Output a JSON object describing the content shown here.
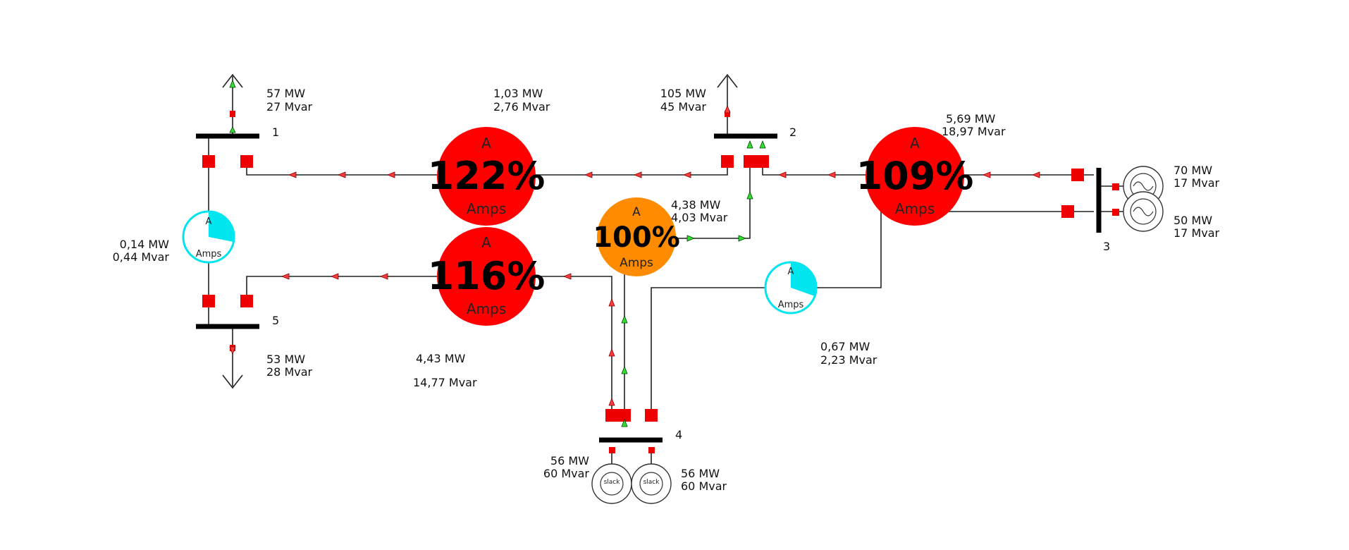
{
  "buses": [
    {
      "id": "bus-1",
      "label": "1"
    },
    {
      "id": "bus-2",
      "label": "2"
    },
    {
      "id": "bus-3",
      "label": "3"
    },
    {
      "id": "bus-4",
      "label": "4"
    },
    {
      "id": "bus-5",
      "label": "5"
    }
  ],
  "loads": {
    "bus1": {
      "mw": "57 MW",
      "mvar": "27 Mvar"
    },
    "bus2": {
      "mw": "105 MW",
      "mvar": "45 Mvar"
    },
    "bus5": {
      "mw": "53 MW",
      "mvar": "28 Mvar"
    }
  },
  "generators": {
    "bus3_top": {
      "mw": "70 MW",
      "mvar": "17 Mvar"
    },
    "bus3_bottom": {
      "mw": "50 MW",
      "mvar": "17 Mvar"
    },
    "bus4_left": {
      "mw": "56 MW",
      "mvar": "60 Mvar",
      "tag": "slack"
    },
    "bus4_right": {
      "mw": "56 MW",
      "mvar": "60 Mvar",
      "tag": "slack"
    }
  },
  "line_flows": {
    "l12": {
      "mw": "1,03 MW",
      "mvar": "2,76 Mvar"
    },
    "l23": {
      "mw": "5,69 MW",
      "mvar": "18,97 Mvar"
    },
    "l15": {
      "mw": "0,14 MW",
      "mvar": "0,44 Mvar"
    },
    "l24": {
      "mw": "4,38 MW",
      "mvar": "4,03 Mvar"
    },
    "l45": {
      "mw": "4,43 MW",
      "mvar": "14,77 Mvar"
    },
    "l34": {
      "mw": "0,67 MW",
      "mvar": "2,23 Mvar"
    }
  },
  "gauges": {
    "l12": {
      "letter": "A",
      "percent": "122%",
      "unit": "Amps",
      "color": "#ff0000",
      "fill_fraction": 1.22
    },
    "l23": {
      "letter": "A",
      "percent": "109%",
      "unit": "Amps",
      "color": "#ff0000",
      "fill_fraction": 1.09
    },
    "l45": {
      "letter": "A",
      "percent": "116%",
      "unit": "Amps",
      "color": "#ff0000",
      "fill_fraction": 1.16
    },
    "l24": {
      "letter": "A",
      "percent": "100%",
      "unit": "Amps",
      "color": "#ff8c00",
      "fill_fraction": 1.0
    },
    "l15": {
      "letter": "A",
      "unit": "Amps",
      "color": "#00e5ee",
      "fill_fraction": 0.3
    },
    "l34": {
      "letter": "A",
      "unit": "Amps",
      "color": "#00e5ee",
      "fill_fraction": 0.4
    }
  },
  "colors": {
    "overload": "#ff0000",
    "warning": "#ff8c00",
    "normal": "#00e5ee",
    "breaker": "#ee0000",
    "arrow_red": "#ff3b3b",
    "arrow_green": "#33dd33"
  }
}
